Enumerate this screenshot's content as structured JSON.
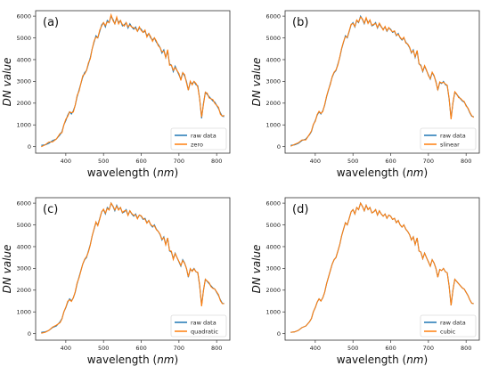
{
  "chart_data": [
    {
      "type": "line",
      "panel_label": "(a)",
      "xlabel": "wavelength (nm)",
      "ylabel": "DN  value",
      "xlim": [
        320,
        835
      ],
      "ylim": [
        -300,
        6250
      ],
      "xticks": [
        400,
        500,
        600,
        700,
        800
      ],
      "yticks": [
        0,
        1000,
        2000,
        3000,
        4000,
        5000,
        6000
      ],
      "legend_position": "lower-right",
      "grid": false,
      "series": [
        {
          "name": "raw data",
          "color": "#1f77b4",
          "role": "raw"
        },
        {
          "name": "zero",
          "color": "#ff7f0e",
          "role": "interp",
          "method": "zero"
        }
      ]
    },
    {
      "type": "line",
      "panel_label": "(b)",
      "xlabel": "wavelength (nm)",
      "ylabel": "DN  value",
      "xlim": [
        320,
        835
      ],
      "ylim": [
        -300,
        6250
      ],
      "xticks": [
        400,
        500,
        600,
        700,
        800
      ],
      "yticks": [
        0,
        1000,
        2000,
        3000,
        4000,
        5000,
        6000
      ],
      "legend_position": "lower-right",
      "grid": false,
      "series": [
        {
          "name": "raw data",
          "color": "#1f77b4",
          "role": "raw"
        },
        {
          "name": "slinear",
          "color": "#ff7f0e",
          "role": "interp",
          "method": "slinear"
        }
      ]
    },
    {
      "type": "line",
      "panel_label": "(c)",
      "xlabel": "wavelength (nm)",
      "ylabel": "DN  value",
      "xlim": [
        320,
        835
      ],
      "ylim": [
        -300,
        6250
      ],
      "xticks": [
        400,
        500,
        600,
        700,
        800
      ],
      "yticks": [
        0,
        1000,
        2000,
        3000,
        4000,
        5000,
        6000
      ],
      "legend_position": "lower-right",
      "grid": false,
      "series": [
        {
          "name": "raw data",
          "color": "#1f77b4",
          "role": "raw"
        },
        {
          "name": "quadratic",
          "color": "#ff7f0e",
          "role": "interp",
          "method": "quadratic"
        }
      ]
    },
    {
      "type": "line",
      "panel_label": "(d)",
      "xlabel": "wavelength (nm)",
      "ylabel": "DN  value",
      "xlim": [
        320,
        835
      ],
      "ylim": [
        -300,
        6250
      ],
      "xticks": [
        400,
        500,
        600,
        700,
        800
      ],
      "yticks": [
        0,
        1000,
        2000,
        3000,
        4000,
        5000,
        6000
      ],
      "legend_position": "lower-right",
      "grid": false,
      "series": [
        {
          "name": "raw data",
          "color": "#1f77b4",
          "role": "raw"
        },
        {
          "name": "cubic",
          "color": "#ff7f0e",
          "role": "interp",
          "method": "cubic"
        }
      ]
    }
  ],
  "spectrum": {
    "x": [
      335,
      345,
      355,
      365,
      375,
      385,
      390,
      395,
      400,
      405,
      410,
      415,
      420,
      425,
      430,
      435,
      440,
      445,
      450,
      455,
      460,
      465,
      470,
      475,
      480,
      485,
      490,
      495,
      500,
      505,
      510,
      515,
      520,
      525,
      530,
      535,
      540,
      545,
      550,
      555,
      560,
      565,
      570,
      575,
      580,
      585,
      590,
      595,
      600,
      605,
      610,
      615,
      620,
      625,
      630,
      635,
      640,
      645,
      650,
      655,
      660,
      665,
      670,
      675,
      680,
      685,
      690,
      695,
      700,
      705,
      710,
      715,
      720,
      725,
      730,
      735,
      740,
      745,
      750,
      755,
      760,
      765,
      770,
      775,
      780,
      785,
      790,
      795,
      800,
      805,
      810,
      815,
      820
    ],
    "y": [
      60,
      80,
      150,
      280,
      350,
      550,
      700,
      1000,
      1200,
      1450,
      1600,
      1500,
      1650,
      1900,
      2300,
      2600,
      2900,
      3200,
      3400,
      3500,
      3800,
      4100,
      4500,
      4800,
      5100,
      5000,
      5300,
      5600,
      5700,
      5500,
      5800,
      5700,
      6000,
      5850,
      5650,
      5900,
      5700,
      5800,
      5550,
      5600,
      5700,
      5450,
      5650,
      5500,
      5400,
      5500,
      5300,
      5450,
      5400,
      5250,
      5300,
      5100,
      5200,
      5000,
      4900,
      5000,
      4800,
      4700,
      4550,
      4300,
      4450,
      4100,
      4400,
      3800,
      3750,
      3450,
      3700,
      3500,
      3300,
      3100,
      3400,
      3250,
      3000,
      2600,
      2950,
      2900,
      3000,
      2850,
      2800,
      2200,
      1300,
      2000,
      2500,
      2400,
      2300,
      2200,
      2100,
      2050,
      1900,
      1750,
      1550,
      1400,
      1380
    ]
  }
}
